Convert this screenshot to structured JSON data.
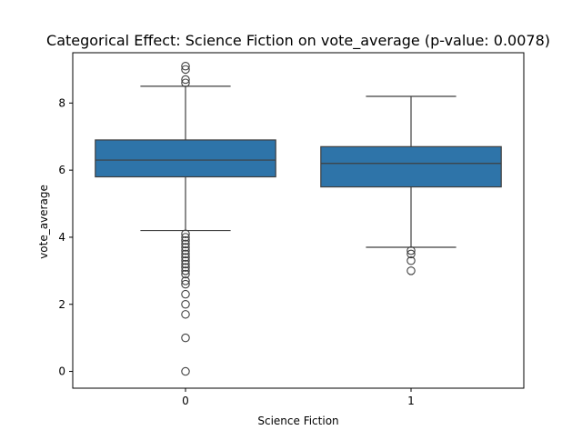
{
  "chart_data": {
    "type": "box",
    "title": "Categorical Effect: Science Fiction on vote_average (p-value: 0.0078)",
    "xlabel": "Science Fiction",
    "ylabel": "vote_average",
    "categories": [
      "0",
      "1"
    ],
    "ylim": [
      -0.5,
      9.5
    ],
    "yticks": [
      0,
      2,
      4,
      6,
      8
    ],
    "grid": false,
    "box_color": "#2e74a9",
    "boxes": [
      {
        "category": "0",
        "whisker_low": 4.2,
        "q1": 5.8,
        "median": 6.3,
        "q3": 6.9,
        "whisker_high": 8.5,
        "outliers": [
          9.1,
          9.0,
          8.7,
          8.6,
          4.1,
          4.0,
          3.9,
          3.8,
          3.7,
          3.6,
          3.5,
          3.4,
          3.3,
          3.2,
          3.1,
          3.0,
          2.9,
          2.7,
          2.6,
          2.3,
          2.0,
          1.7,
          1.0,
          0.0
        ]
      },
      {
        "category": "1",
        "whisker_low": 3.7,
        "q1": 5.5,
        "median": 6.2,
        "q3": 6.7,
        "whisker_high": 8.2,
        "outliers": [
          3.6,
          3.5,
          3.3,
          3.0
        ]
      }
    ]
  }
}
